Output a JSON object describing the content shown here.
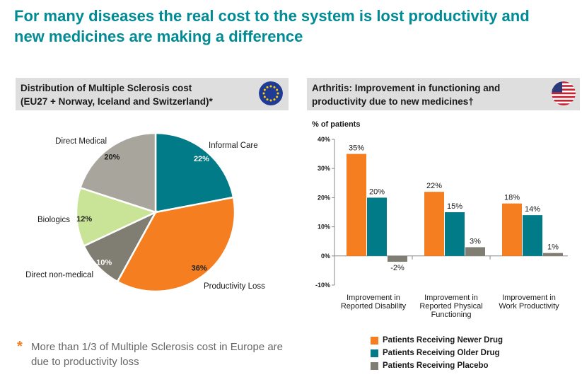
{
  "header": {
    "title_line1": "For many diseases the real cost to the system is lost productivity and",
    "title_line2": "new medicines are making a difference"
  },
  "left_panel": {
    "title_line1": "Distribution of Multiple Sclerosis cost",
    "title_line2": "(EU27 + Norway, Iceland and Switzerland)*",
    "flag": "eu-flag-icon",
    "note": "More than 1/3 of Multiple Sclerosis cost in Europe are due to productivity loss",
    "note_bullet": "*"
  },
  "right_panel": {
    "title_line1": "Arthritis: Improvement in functioning and",
    "title_line2": "productivity due to new medicines†",
    "flag": "us-flag-icon"
  },
  "colors": {
    "title": "#008b95",
    "orange": "#f47e20",
    "teal": "#007b87",
    "gray": "#807d72",
    "green": "#c9e397",
    "beige": "#a8a59c"
  },
  "chart_data": [
    {
      "type": "pie",
      "title": "Distribution of Multiple Sclerosis cost",
      "slices": [
        {
          "label": "Informal Care",
          "value": 22,
          "value_label": "22%",
          "color": "#007b87"
        },
        {
          "label": "Productivity Loss",
          "value": 36,
          "value_label": "36%",
          "color": "#f47e20"
        },
        {
          "label": "Direct non-medical",
          "value": 10,
          "value_label": "10%",
          "color": "#807d72"
        },
        {
          "label": "Biologics",
          "value": 12,
          "value_label": "12%",
          "color": "#c9e397"
        },
        {
          "label": "Direct Medical",
          "value": 20,
          "value_label": "20%",
          "color": "#a8a59c"
        }
      ]
    },
    {
      "type": "bar",
      "title": "Arthritis: Improvement in functioning and productivity due to new medicines",
      "ylabel": "% of patients",
      "ylim": [
        -10,
        40
      ],
      "yticks": [
        -10,
        0,
        10,
        20,
        30,
        40
      ],
      "ytick_labels": [
        "-10%",
        "0%",
        "10%",
        "20%",
        "30%",
        "40%"
      ],
      "categories": [
        [
          "Improvement in",
          "Reported Disability"
        ],
        [
          "Improvement in",
          "Reported Physical",
          "Functioning"
        ],
        [
          "Improvement in",
          "Work Productivity"
        ]
      ],
      "series": [
        {
          "name": "Patients Receiving Newer Drug",
          "values": [
            35,
            22,
            18
          ],
          "labels": [
            "35%",
            "22%",
            "18%"
          ],
          "color": "#f47e20"
        },
        {
          "name": "Patients Receiving Older Drug",
          "values": [
            20,
            15,
            14
          ],
          "labels": [
            "20%",
            "15%",
            "14%"
          ],
          "color": "#007b87"
        },
        {
          "name": "Patients Receiving Placebo",
          "values": [
            -2,
            3,
            1
          ],
          "labels": [
            "-2%",
            "3%",
            "1%"
          ],
          "color": "#807d72"
        }
      ]
    }
  ]
}
